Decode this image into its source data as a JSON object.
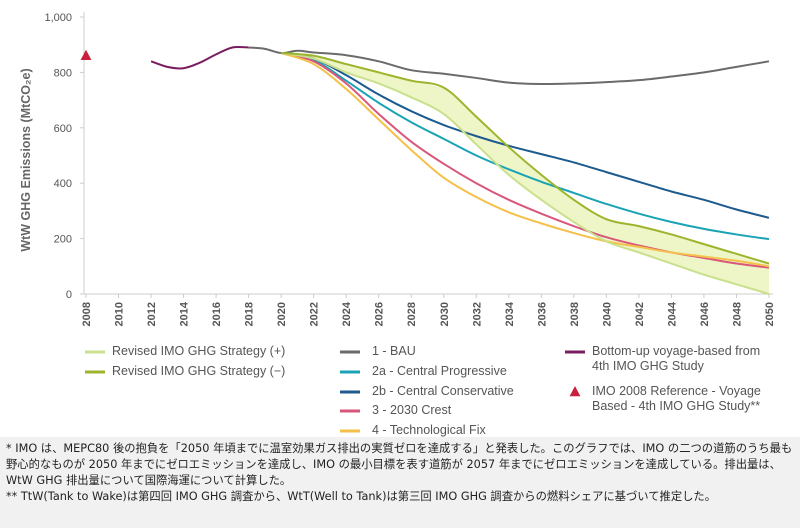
{
  "chart_data": {
    "type": "line",
    "y_label": "WtW GHG Emissions (MtCO₂e)",
    "xlim": [
      2008,
      2050
    ],
    "xticks": [
      2008,
      2010,
      2012,
      2014,
      2016,
      2018,
      2020,
      2022,
      2024,
      2026,
      2028,
      2030,
      2032,
      2034,
      2036,
      2038,
      2040,
      2042,
      2044,
      2046,
      2048,
      2050
    ],
    "ylim": [
      0,
      1000
    ],
    "yticks": [
      0,
      200,
      400,
      600,
      {
        "value": 800,
        "label": "800"
      },
      {
        "value": 1000,
        "label": "1,000"
      }
    ],
    "grid": false,
    "shade_between": [
      0,
      1
    ],
    "shade_color": "#eef5c6",
    "series": [
      {
        "name": "Revised IMO GHG Strategy (+)",
        "color": "#c9e08c",
        "x": [
          2020,
          2022,
          2024,
          2026,
          2028,
          2030,
          2032,
          2034,
          2036,
          2038,
          2040,
          2042,
          2044,
          2046,
          2048,
          2050
        ],
        "values": [
          870,
          850,
          800,
          760,
          710,
          650,
          540,
          430,
          340,
          260,
          190,
          150,
          110,
          70,
          35,
          0
        ]
      },
      {
        "name": "Revised IMO GHG Strategy (−)",
        "color": "#9bb52c",
        "x": [
          2020,
          2022,
          2024,
          2026,
          2028,
          2030,
          2032,
          2034,
          2036,
          2038,
          2040,
          2042,
          2044,
          2046,
          2048,
          2050
        ],
        "values": [
          870,
          860,
          830,
          800,
          770,
          745,
          640,
          530,
          430,
          340,
          270,
          245,
          215,
          180,
          145,
          110
        ]
      },
      {
        "name": "1 - BAU",
        "color": "#6b6b6b",
        "x": [
          2018,
          2019,
          2020,
          2021,
          2022,
          2024,
          2026,
          2028,
          2030,
          2032,
          2034,
          2036,
          2038,
          2040,
          2042,
          2044,
          2046,
          2048,
          2050
        ],
        "values": [
          890,
          885,
          870,
          878,
          872,
          862,
          840,
          808,
          795,
          780,
          763,
          758,
          760,
          765,
          772,
          785,
          800,
          820,
          840
        ]
      },
      {
        "name": "2a - Central Progressive",
        "color": "#19a3b5",
        "x": [
          2020,
          2022,
          2024,
          2026,
          2028,
          2030,
          2032,
          2034,
          2036,
          2038,
          2040,
          2042,
          2044,
          2046,
          2048,
          2050
        ],
        "values": [
          870,
          845,
          770,
          690,
          620,
          560,
          500,
          450,
          405,
          365,
          325,
          290,
          260,
          235,
          215,
          198
        ]
      },
      {
        "name": "2b - Central Conservative",
        "color": "#1d5a8e",
        "x": [
          2020,
          2022,
          2024,
          2026,
          2028,
          2030,
          2032,
          2034,
          2036,
          2038,
          2040,
          2042,
          2044,
          2046,
          2048,
          2050
        ],
        "values": [
          870,
          850,
          790,
          720,
          660,
          610,
          570,
          535,
          505,
          475,
          440,
          405,
          370,
          340,
          305,
          275
        ]
      },
      {
        "name": "3 - 2030 Crest",
        "color": "#d9577a",
        "x": [
          2020,
          2022,
          2024,
          2026,
          2028,
          2030,
          2032,
          2034,
          2036,
          2038,
          2040,
          2042,
          2044,
          2046,
          2048,
          2050
        ],
        "values": [
          870,
          840,
          760,
          650,
          550,
          470,
          400,
          340,
          290,
          245,
          205,
          175,
          150,
          130,
          110,
          95
        ]
      },
      {
        "name": "4 - Technological Fix",
        "color": "#f5c04a",
        "x": [
          2020,
          2022,
          2024,
          2026,
          2028,
          2030,
          2032,
          2034,
          2036,
          2038,
          2040,
          2042,
          2044,
          2046,
          2048,
          2050
        ],
        "values": [
          870,
          830,
          740,
          630,
          520,
          420,
          350,
          295,
          255,
          220,
          190,
          170,
          150,
          135,
          120,
          100
        ]
      },
      {
        "name": "Bottom-up voyage-based from 4th IMO GHG Study",
        "color": "#7a1d5e",
        "x": [
          2012,
          2013,
          2014,
          2015,
          2016,
          2017,
          2018
        ],
        "values": [
          840,
          820,
          815,
          835,
          865,
          890,
          890
        ]
      },
      {
        "name": "IMO 2008 Reference - Voyage Based - 4th IMO GHG Study**",
        "color": "#c8203e",
        "marker": "triangle",
        "x": [
          2008
        ],
        "values": [
          860
        ]
      }
    ]
  },
  "notes": [
    "* IMO は、MEPC80 後の抱負を「2050 年頃までに温室効果ガス排出の実質ゼロを達成する」と発表した。このグラフでは、IMO の二つの道筋のうち最も野心的なものが 2050 年までにゼロエミッションを達成し、IMO の最小目標を表す道筋が 2057 年までにゼロエミッションを達成している。排出量は、WtW GHG 排出量について国際海運について計算した。",
    "** TtW(Tank to Wake)は第四回 IMO GHG 調査から、WtT(Well to Tank)は第三回 IMO GHG 調査からの燃料シェアに基づいて推定した。"
  ]
}
